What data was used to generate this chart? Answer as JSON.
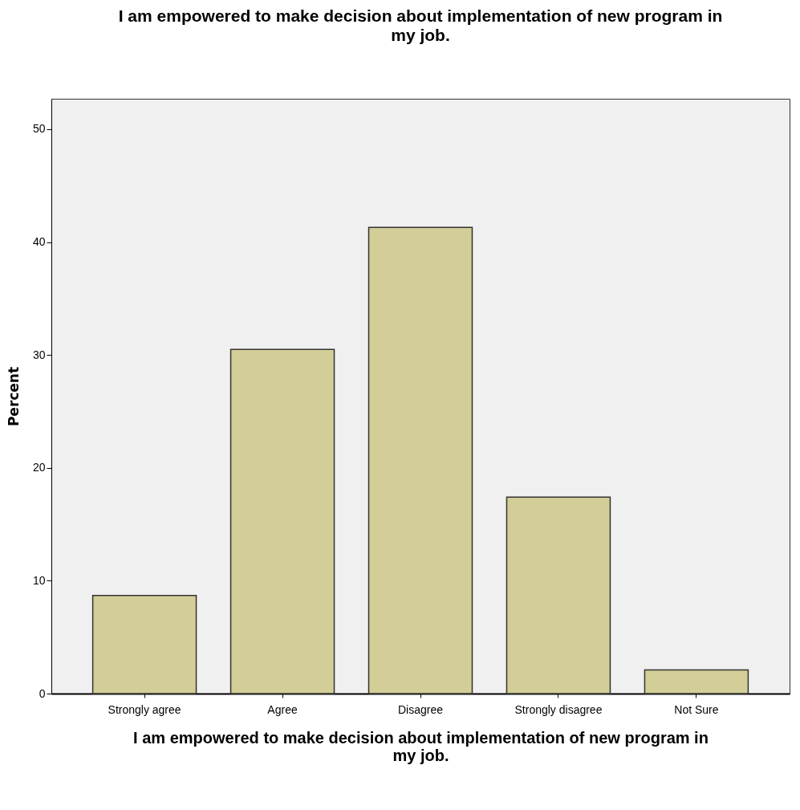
{
  "chart_data": {
    "type": "bar",
    "title": "I am empowered to make decision about implementation of new program in my job.",
    "xlabel": "I am empowered to make decision about implementation of new program in my job.",
    "ylabel": "Percent",
    "categories": [
      "Strongly agree",
      "Agree",
      "Disagree",
      "Strongly disagree",
      "Not Sure"
    ],
    "values": [
      8.7,
      30.5,
      41.3,
      17.4,
      2.1
    ],
    "color": "#d3ce97",
    "ylim": [
      0,
      52.7
    ],
    "yticks": [
      0,
      10,
      20,
      30,
      40,
      50
    ],
    "grid": false
  }
}
